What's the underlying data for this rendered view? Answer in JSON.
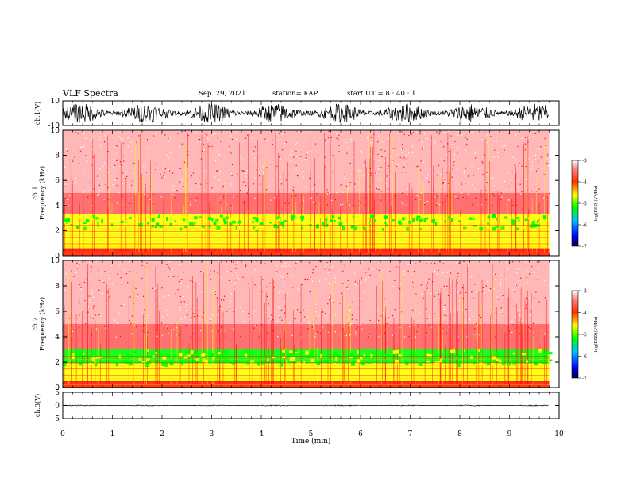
{
  "header": {
    "title": "VLF Spectra",
    "date": "Sep. 29, 2021",
    "station": "station= KAP",
    "start_ut": "start  UT =  8 : 40 : 1"
  },
  "chart_data": [
    {
      "type": "line",
      "panel": "ch1-waveform",
      "ylabel": "ch.1(V)",
      "ylim": [
        -10,
        10
      ],
      "yticks": [
        "10",
        "-10"
      ],
      "xlim": [
        0,
        10
      ],
      "data_extent_min": [
        0,
        9.8
      ],
      "description_level": "noisy broadband signal spanning roughly -8 to +8 V"
    },
    {
      "type": "heatmap",
      "panel": "ch1-spectrogram",
      "ylabel": "ch.1\nFrequency (kHz)",
      "ylim": [
        0,
        10
      ],
      "yticks": [
        "0",
        "2",
        "4",
        "6",
        "8",
        "10"
      ],
      "xlim": [
        0,
        10
      ],
      "data_extent_min": [
        0,
        9.8
      ],
      "colorbar": {
        "label": "log(PSD)(V²/Hz)",
        "range": [
          -7,
          -3
        ],
        "ticks": [
          "-3",
          "-4",
          "-5",
          "-6",
          "-7"
        ]
      },
      "bands": [
        {
          "f_khz": [
            0.0,
            0.6
          ],
          "level": -4.2
        },
        {
          "f_khz": [
            0.6,
            2.2
          ],
          "level": -4.8
        },
        {
          "f_khz": [
            2.2,
            3.3
          ],
          "level": -5.0
        },
        {
          "f_khz": [
            3.3,
            5.0
          ],
          "level": -3.8
        },
        {
          "f_khz": [
            5.0,
            10.0
          ],
          "level": -3.3
        }
      ]
    },
    {
      "type": "heatmap",
      "panel": "ch2-spectrogram",
      "ylabel": "ch.2\nFrequency (kHz)",
      "ylim": [
        0,
        10
      ],
      "yticks": [
        "0",
        "2",
        "4",
        "6",
        "8",
        "10"
      ],
      "xlim": [
        0,
        10
      ],
      "data_extent_min": [
        0,
        9.8
      ],
      "colorbar": {
        "label": "log(PSD)(V²/Hz)",
        "range": [
          -7,
          -3
        ],
        "ticks": [
          "-3",
          "-4",
          "-5",
          "-6",
          "-7"
        ]
      },
      "bands": [
        {
          "f_khz": [
            0.0,
            0.5
          ],
          "level": -4.2
        },
        {
          "f_khz": [
            0.5,
            1.9
          ],
          "level": -5.0
        },
        {
          "f_khz": [
            1.9,
            3.0
          ],
          "level": -5.2
        },
        {
          "f_khz": [
            3.0,
            5.0
          ],
          "level": -3.8
        },
        {
          "f_khz": [
            5.0,
            10.0
          ],
          "level": -3.3
        }
      ]
    },
    {
      "type": "line",
      "panel": "ch3-waveform",
      "ylabel": "ch.3(V)",
      "ylim": [
        -5,
        5
      ],
      "yticks": [
        "5",
        "0",
        "-5"
      ],
      "xlim": [
        0,
        10
      ],
      "data_extent_min": [
        0,
        9.8
      ],
      "description_level": "flat signal near 0 V"
    }
  ],
  "xaxis": {
    "label": "Time (min)",
    "ticks": [
      "0",
      "1",
      "2",
      "3",
      "4",
      "5",
      "6",
      "7",
      "8",
      "9",
      "10"
    ]
  },
  "colors": {
    "colormap": [
      "#000080",
      "#0000ff",
      "#00a0ff",
      "#00ff00",
      "#ffff00",
      "#ff8000",
      "#ff0000",
      "#ffffff"
    ],
    "trace": "#000000"
  }
}
